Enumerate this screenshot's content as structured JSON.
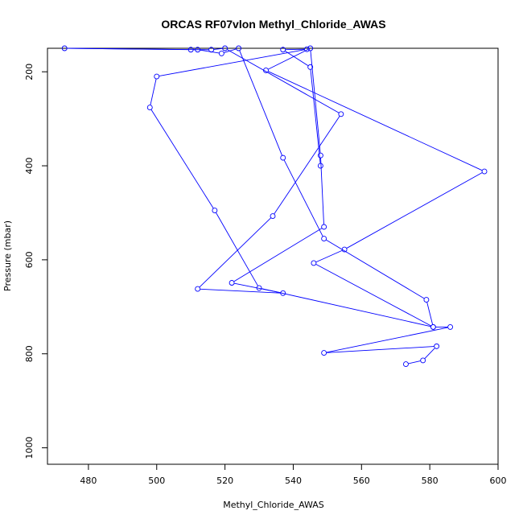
{
  "chart_data": {
    "type": "line",
    "title": "ORCAS RF07vlon Methyl_Chloride_AWAS",
    "xlabel": "Methyl_Chloride_AWAS",
    "ylabel": "Pressure (mbar)",
    "xlim": [
      468,
      600
    ],
    "ylim": [
      1035,
      150
    ],
    "y_reversed": true,
    "x_ticks": [
      480,
      500,
      520,
      540,
      560,
      580,
      600
    ],
    "y_ticks": [
      200,
      400,
      600,
      800,
      1000
    ],
    "grid": false,
    "legend": "none",
    "colors": {
      "series": "#0000ff",
      "axis": "#000000",
      "background": "#ffffff"
    },
    "series": [
      {
        "markers": "open-circle",
        "points": [
          [
            573,
            822
          ],
          [
            578,
            814
          ],
          [
            582,
            784
          ],
          [
            549,
            798
          ],
          [
            586,
            743
          ],
          [
            581,
            743
          ],
          [
            546,
            607
          ],
          [
            555,
            578
          ],
          [
            596,
            412
          ],
          [
            532,
            197
          ],
          [
            545,
            150
          ],
          [
            548,
            378
          ],
          [
            549,
            530
          ],
          [
            522,
            649
          ],
          [
            537,
            671
          ],
          [
            512,
            662
          ],
          [
            534,
            507
          ],
          [
            554,
            290
          ],
          [
            520,
            150
          ],
          [
            516,
            153
          ],
          [
            510,
            153
          ],
          [
            473,
            150
          ],
          [
            512,
            153
          ],
          [
            519,
            161
          ],
          [
            524,
            150
          ],
          [
            537,
            383
          ],
          [
            549,
            555
          ],
          [
            579,
            685
          ],
          [
            581,
            743
          ],
          [
            530,
            660
          ],
          [
            517,
            495
          ],
          [
            498,
            276
          ],
          [
            500,
            210
          ],
          [
            544,
            152
          ],
          [
            537,
            153
          ],
          [
            545,
            190
          ],
          [
            548,
            400
          ]
        ]
      }
    ]
  }
}
